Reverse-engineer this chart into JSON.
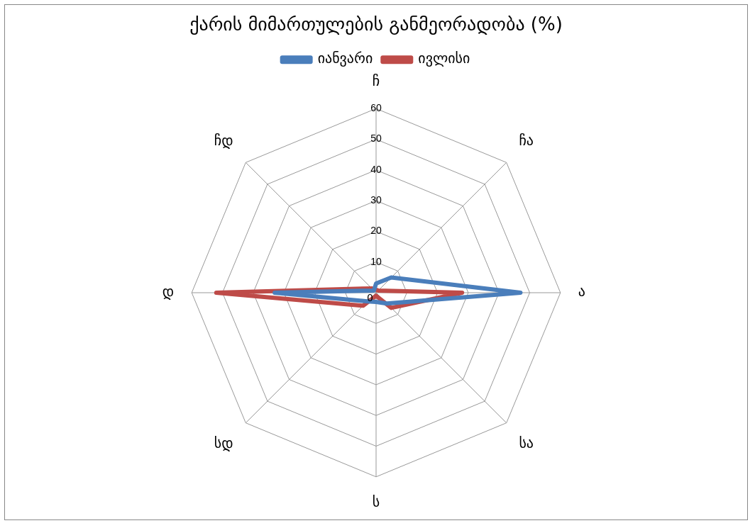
{
  "chart_data": {
    "type": "radar",
    "title": "ქარის მიმართულების განმეორადობა (%)",
    "categories": [
      "ჩ",
      "ჩა",
      "ა",
      "სა",
      "ს",
      "სდ",
      "დ",
      "ჩდ"
    ],
    "series": [
      {
        "name": "იანვარი",
        "color": "#4a7ebb",
        "values": [
          3,
          7,
          47,
          5,
          3,
          4,
          33,
          1
        ]
      },
      {
        "name": "ივლისი",
        "color": "#be4b48",
        "values": [
          1,
          1,
          28,
          7,
          1,
          6,
          52,
          2
        ]
      }
    ],
    "ylim": [
      0,
      60
    ],
    "yticks": [
      0,
      10,
      20,
      30,
      40,
      50,
      60
    ],
    "grid": true,
    "legend": "top",
    "marker": "none"
  }
}
